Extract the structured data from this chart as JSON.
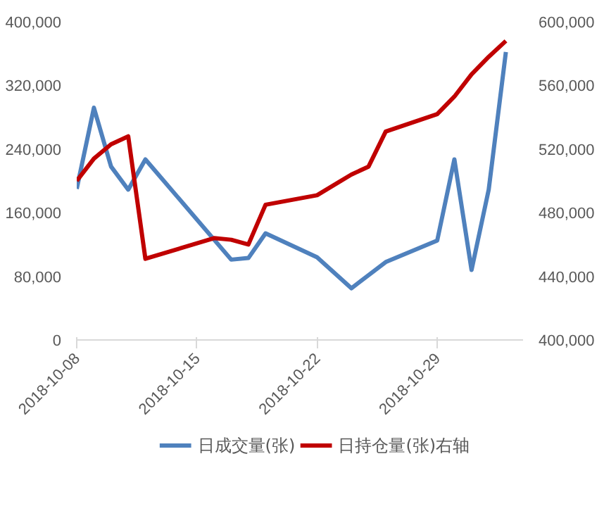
{
  "chart_data": {
    "type": "line",
    "xlim": [
      "2018-10-08",
      "2018-11-03"
    ],
    "xticks": [
      "2018-10-08",
      "2018-10-15",
      "2018-10-22",
      "2018-10-29"
    ],
    "ylim": [
      0,
      400000
    ],
    "yticks": [
      {
        "value": 0,
        "label": "0"
      },
      {
        "value": 80000,
        "label": "80,000"
      },
      {
        "value": 160000,
        "label": "160,000"
      },
      {
        "value": 240000,
        "label": "240,000"
      },
      {
        "value": 320000,
        "label": "320,000"
      },
      {
        "value": 400000,
        "label": "400,000"
      }
    ],
    "y2lim": [
      400000,
      600000
    ],
    "y2ticks": [
      {
        "value": 400000,
        "label": "400,000"
      },
      {
        "value": 440000,
        "label": "440,000"
      },
      {
        "value": 480000,
        "label": "480,000"
      },
      {
        "value": 520000,
        "label": "520,000"
      },
      {
        "value": 560000,
        "label": "560,000"
      },
      {
        "value": 600000,
        "label": "600,000"
      }
    ],
    "grid": false,
    "legend": "bottom",
    "line_style": "solid",
    "marker": "none",
    "series": [
      {
        "name": "日成交量(张)",
        "color": "#4f81bd",
        "x": [
          "2018-10-08",
          "2018-10-09",
          "2018-10-10",
          "2018-10-11",
          "2018-10-12",
          "2018-10-17",
          "2018-10-18",
          "2018-10-19",
          "2018-10-22",
          "2018-10-24",
          "2018-10-26",
          "2018-10-29",
          "2018-10-30",
          "2018-10-31",
          "2018-11-01",
          "2018-11-02"
        ],
        "values": [
          190000,
          292000,
          218000,
          189000,
          227000,
          101000,
          103000,
          134000,
          104000,
          65000,
          98000,
          125000,
          227000,
          88000,
          189000,
          362000
        ]
      },
      {
        "name": "日持仓量(张)右轴",
        "color": "#c00000",
        "axis": "y2",
        "x": [
          "2018-10-08",
          "2018-10-09",
          "2018-10-10",
          "2018-10-11",
          "2018-10-12",
          "2018-10-16",
          "2018-10-17",
          "2018-10-18",
          "2018-10-19",
          "2018-10-22",
          "2018-10-24",
          "2018-10-25",
          "2018-10-26",
          "2018-10-29",
          "2018-10-30",
          "2018-10-31",
          "2018-11-01",
          "2018-11-02"
        ],
        "values": [
          500000,
          514000,
          523000,
          528000,
          451000,
          464000,
          463000,
          460000,
          485000,
          491000,
          504000,
          509000,
          531000,
          542000,
          553000,
          567000,
          578000,
          588000
        ]
      }
    ]
  }
}
